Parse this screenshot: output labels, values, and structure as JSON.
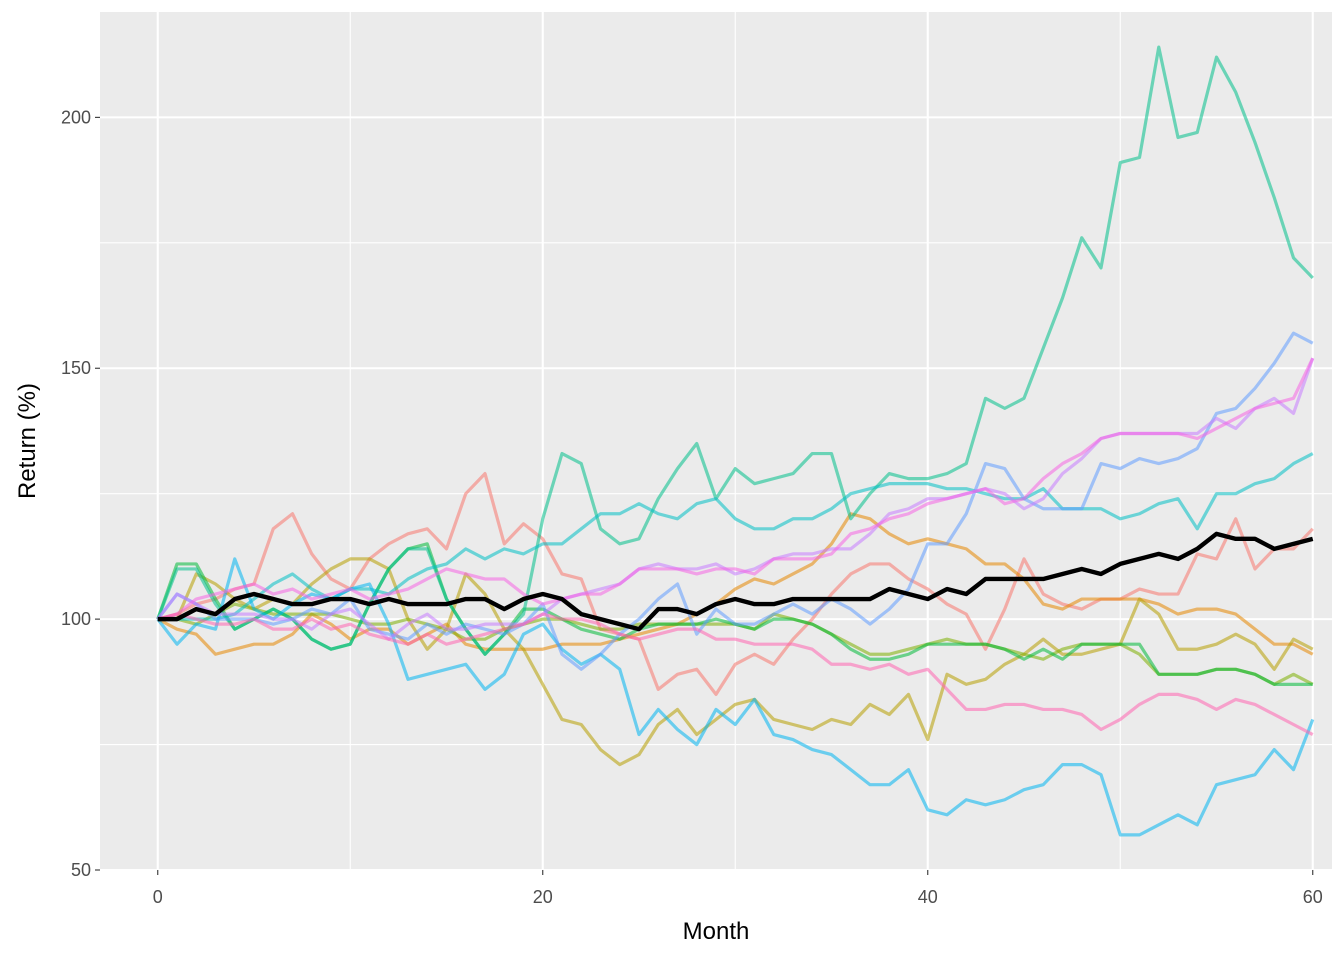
{
  "chart_data": {
    "type": "line",
    "title": "",
    "xlabel": "Month",
    "ylabel": "Return (%)",
    "xlim": [
      -3,
      61
    ],
    "ylim": [
      50,
      221
    ],
    "x_ticks": [
      0,
      20,
      40,
      60
    ],
    "x_tick_labels": [
      "0",
      "20",
      "40",
      "60"
    ],
    "y_ticks": [
      50,
      100,
      150,
      200
    ],
    "y_tick_labels": [
      "50",
      "100",
      "150",
      "200"
    ],
    "grid": true,
    "legend": "none",
    "background": "#ebebeb",
    "gridline_color": "#ffffff",
    "series": [
      {
        "color": "#f8766d",
        "values": [
          100,
          101,
          103,
          104,
          106,
          107,
          118,
          121,
          113,
          108,
          106,
          112,
          115,
          117,
          118,
          114,
          125,
          129,
          115,
          119,
          116,
          109,
          108,
          98,
          97,
          96,
          86,
          89,
          90,
          85,
          91,
          93,
          91,
          96,
          100,
          105,
          109,
          111,
          111,
          108,
          106,
          103,
          101,
          94,
          102,
          112,
          105,
          103,
          102,
          104,
          104,
          106,
          105,
          105,
          113,
          112,
          120,
          110,
          114,
          114,
          118
        ]
      },
      {
        "color": "#e58700",
        "values": [
          100,
          98,
          97,
          93,
          94,
          95,
          95,
          97,
          101,
          99,
          96,
          98,
          98,
          95,
          97,
          99,
          95,
          94,
          94,
          94,
          94,
          95,
          95,
          95,
          96,
          97,
          98,
          99,
          101,
          103,
          106,
          108,
          107,
          109,
          111,
          115,
          121,
          120,
          117,
          115,
          116,
          115,
          114,
          111,
          111,
          108,
          103,
          102,
          104,
          104,
          104,
          104,
          103,
          101,
          102,
          102,
          101,
          98,
          95,
          95,
          93
        ]
      },
      {
        "color": "#b79f00",
        "values": [
          100,
          100,
          109,
          107,
          104,
          102,
          104,
          103,
          107,
          110,
          112,
          112,
          110,
          100,
          94,
          98,
          109,
          105,
          98,
          94,
          87,
          80,
          79,
          74,
          71,
          73,
          79,
          82,
          77,
          80,
          83,
          84,
          80,
          79,
          78,
          80,
          79,
          83,
          81,
          85,
          76,
          89,
          87,
          88,
          91,
          93,
          96,
          93,
          93,
          94,
          95,
          104,
          101,
          94,
          94,
          95,
          97,
          95,
          90,
          96,
          94
        ]
      },
      {
        "color": "#7cae00",
        "values": [
          100,
          100,
          99,
          101,
          103,
          102,
          101,
          101,
          101,
          101,
          100,
          99,
          99,
          100,
          99,
          98,
          96,
          96,
          98,
          99,
          100,
          100,
          99,
          98,
          98,
          99,
          99,
          99,
          99,
          99,
          99,
          98,
          101,
          100,
          99,
          97,
          95,
          93,
          93,
          94,
          95,
          96,
          95,
          95,
          94,
          93,
          92,
          94,
          95,
          95,
          95,
          93,
          89,
          89,
          89,
          90,
          90,
          89,
          87,
          89,
          87
        ]
      },
      {
        "color": "#00ba38",
        "values": [
          100,
          111,
          111,
          104,
          98,
          100,
          102,
          100,
          96,
          94,
          95,
          103,
          110,
          114,
          115,
          104,
          98,
          93,
          97,
          102,
          102,
          100,
          98,
          97,
          96,
          98,
          99,
          99,
          99,
          100,
          99,
          98,
          100,
          100,
          99,
          97,
          94,
          92,
          92,
          93,
          95,
          95,
          95,
          95,
          94,
          92,
          94,
          92,
          95,
          95,
          95,
          95,
          89,
          89,
          89,
          90,
          90,
          89,
          87,
          87,
          87
        ]
      },
      {
        "color": "#00c08b",
        "values": [
          100,
          110,
          110,
          103,
          98,
          100,
          102,
          100,
          96,
          94,
          95,
          103,
          110,
          114,
          114,
          104,
          98,
          93,
          97,
          101,
          120,
          133,
          131,
          118,
          115,
          116,
          124,
          130,
          135,
          124,
          130,
          127,
          128,
          129,
          133,
          133,
          120,
          125,
          129,
          128,
          128,
          129,
          131,
          144,
          142,
          144,
          154,
          164,
          176,
          170,
          191,
          192,
          214,
          196,
          197,
          212,
          205,
          195,
          184,
          172,
          168
        ]
      },
      {
        "color": "#00bfc4",
        "values": [
          100,
          100,
          100,
          100,
          101,
          104,
          107,
          109,
          106,
          104,
          106,
          106,
          105,
          108,
          110,
          111,
          114,
          112,
          114,
          113,
          115,
          115,
          118,
          121,
          121,
          123,
          121,
          120,
          123,
          124,
          120,
          118,
          118,
          120,
          120,
          122,
          125,
          126,
          127,
          127,
          127,
          126,
          126,
          125,
          124,
          124,
          126,
          122,
          122,
          122,
          120,
          121,
          123,
          124,
          118,
          125,
          125,
          127,
          128,
          131,
          133
        ]
      },
      {
        "color": "#00b4f0",
        "values": [
          100,
          95,
          99,
          98,
          112,
          102,
          100,
          103,
          105,
          104,
          106,
          107,
          99,
          88,
          89,
          90,
          91,
          86,
          89,
          97,
          99,
          94,
          91,
          93,
          90,
          77,
          82,
          78,
          75,
          82,
          79,
          84,
          77,
          76,
          74,
          73,
          70,
          67,
          67,
          70,
          62,
          61,
          64,
          63,
          64,
          66,
          67,
          71,
          71,
          69,
          57,
          57,
          59,
          61,
          59,
          67,
          68,
          69,
          74,
          70,
          80
        ]
      },
      {
        "color": "#619cff",
        "values": [
          100,
          105,
          103,
          100,
          100,
          100,
          99,
          100,
          102,
          101,
          104,
          98,
          97,
          96,
          99,
          97,
          99,
          98,
          97,
          99,
          103,
          93,
          90,
          93,
          97,
          100,
          104,
          107,
          97,
          102,
          99,
          99,
          101,
          103,
          101,
          104,
          102,
          99,
          102,
          106,
          115,
          115,
          121,
          131,
          130,
          124,
          122,
          122,
          122,
          131,
          130,
          132,
          131,
          132,
          134,
          141,
          142,
          146,
          151,
          157,
          155
        ]
      },
      {
        "color": "#c77cff",
        "values": [
          100,
          105,
          103,
          101,
          101,
          101,
          100,
          100,
          98,
          101,
          102,
          99,
          96,
          99,
          101,
          98,
          98,
          99,
          99,
          99,
          101,
          104,
          105,
          106,
          107,
          110,
          111,
          110,
          110,
          111,
          109,
          110,
          112,
          113,
          113,
          114,
          114,
          117,
          121,
          122,
          124,
          124,
          125,
          126,
          125,
          122,
          124,
          129,
          132,
          136,
          137,
          137,
          137,
          137,
          137,
          140,
          138,
          142,
          144,
          141,
          152
        ]
      },
      {
        "color": "#f564e3",
        "values": [
          100,
          101,
          104,
          105,
          106,
          107,
          105,
          106,
          104,
          105,
          106,
          104,
          105,
          106,
          108,
          110,
          109,
          108,
          108,
          105,
          103,
          104,
          105,
          105,
          107,
          110,
          110,
          110,
          109,
          110,
          110,
          109,
          112,
          112,
          112,
          113,
          117,
          118,
          120,
          121,
          123,
          124,
          125,
          126,
          123,
          124,
          128,
          131,
          133,
          136,
          137,
          137,
          137,
          137,
          136,
          138,
          140,
          142,
          143,
          144,
          152
        ]
      },
      {
        "color": "#ff64b0",
        "values": [
          100,
          101,
          100,
          99,
          99,
          100,
          98,
          98,
          100,
          98,
          99,
          97,
          96,
          95,
          97,
          95,
          96,
          97,
          98,
          99,
          101,
          100,
          100,
          99,
          97,
          96,
          97,
          98,
          98,
          96,
          96,
          95,
          95,
          95,
          94,
          91,
          91,
          90,
          91,
          89,
          90,
          86,
          82,
          82,
          83,
          83,
          82,
          82,
          81,
          78,
          80,
          83,
          85,
          85,
          84,
          82,
          84,
          83,
          81,
          79,
          77
        ]
      },
      {
        "color": "#000000",
        "width": 4.4,
        "opacity": 1,
        "values": [
          100,
          100,
          102,
          101,
          104,
          105,
          104,
          103,
          103,
          104,
          104,
          103,
          104,
          103,
          103,
          103,
          104,
          104,
          102,
          104,
          105,
          104,
          101,
          100,
          99,
          98,
          102,
          102,
          101,
          103,
          104,
          103,
          103,
          104,
          104,
          104,
          104,
          104,
          106,
          105,
          104,
          106,
          105,
          108,
          108,
          108,
          108,
          109,
          110,
          109,
          111,
          112,
          113,
          112,
          114,
          117,
          116,
          116,
          114,
          115,
          116
        ]
      }
    ]
  }
}
